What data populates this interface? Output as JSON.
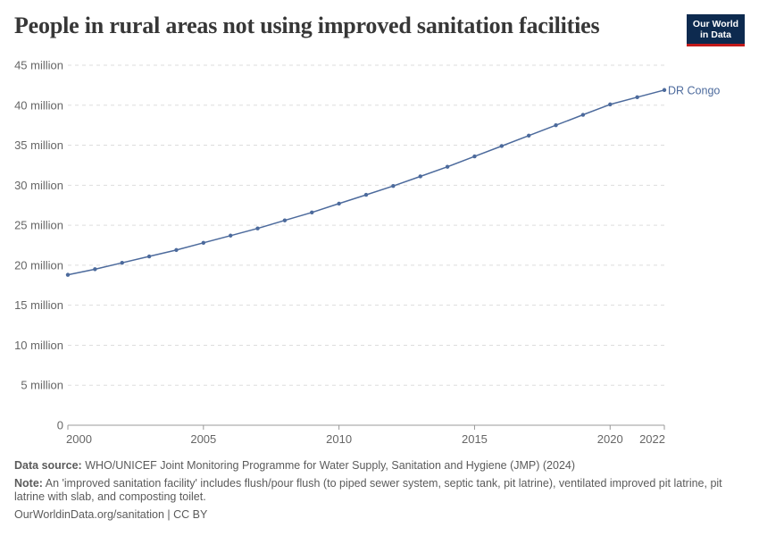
{
  "title": "People in rural areas not using improved sanitation facilities",
  "logo": {
    "line1": "Our World",
    "line2": "in Data"
  },
  "chart_data": {
    "type": "line",
    "title": "People in rural areas not using improved sanitation facilities",
    "xlabel": "",
    "ylabel": "",
    "xlim": [
      2000,
      2022
    ],
    "ylim": [
      0,
      45000000
    ],
    "y_ticks": [
      {
        "value": 0,
        "label": "0"
      },
      {
        "value": 5000000,
        "label": "5 million"
      },
      {
        "value": 10000000,
        "label": "10 million"
      },
      {
        "value": 15000000,
        "label": "15 million"
      },
      {
        "value": 20000000,
        "label": "20 million"
      },
      {
        "value": 25000000,
        "label": "25 million"
      },
      {
        "value": 30000000,
        "label": "30 million"
      },
      {
        "value": 35000000,
        "label": "35 million"
      },
      {
        "value": 40000000,
        "label": "40 million"
      },
      {
        "value": 45000000,
        "label": "45 million"
      }
    ],
    "x_ticks": [
      2000,
      2005,
      2010,
      2015,
      2020,
      2022
    ],
    "grid": "horizontal dashed",
    "series": [
      {
        "name": "DR Congo",
        "color": "#4c6a9c",
        "x": [
          2000,
          2001,
          2002,
          2003,
          2004,
          2005,
          2006,
          2007,
          2008,
          2009,
          2010,
          2011,
          2012,
          2013,
          2014,
          2015,
          2016,
          2017,
          2018,
          2019,
          2020,
          2021,
          2022
        ],
        "values": [
          18800000,
          19500000,
          20300000,
          21100000,
          21900000,
          22800000,
          23700000,
          24600000,
          25600000,
          26600000,
          27700000,
          28800000,
          29900000,
          31100000,
          32300000,
          33600000,
          34900000,
          36200000,
          37500000,
          38800000,
          40100000,
          41000000,
          41900000
        ]
      }
    ]
  },
  "footer": {
    "source_label": "Data source:",
    "source_text": "WHO/UNICEF Joint Monitoring Programme for Water Supply, Sanitation and Hygiene (JMP) (2024)",
    "note_label": "Note:",
    "note_text": "An 'improved sanitation facility' includes flush/pour flush (to piped sewer system, septic tank, pit latrine), ventilated improved pit latrine, pit latrine with slab, and composting toilet.",
    "credit": "OurWorldinData.org/sanitation | CC BY"
  }
}
